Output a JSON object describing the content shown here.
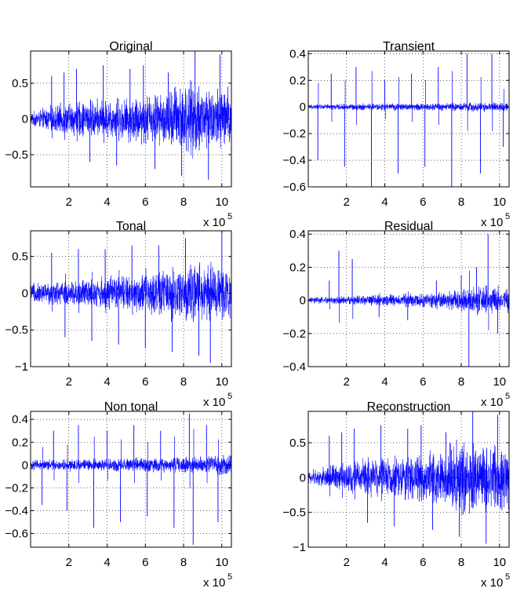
{
  "chart_data": [
    {
      "type": "line",
      "title": "Original",
      "color": "#0000ff",
      "xlim": [
        0,
        1050000
      ],
      "ylim": [
        -0.95,
        0.95
      ],
      "xticks": [
        200000,
        400000,
        600000,
        800000,
        1000000
      ],
      "xtick_labels": [
        "2",
        "4",
        "6",
        "8",
        "10"
      ],
      "yticks": [
        -0.5,
        0,
        0.5
      ],
      "ytick_labels": [
        "−0.5",
        "0",
        "0.5"
      ],
      "x_multiplier": "x 10",
      "x_multiplier_exp": "5",
      "grid": true,
      "envelope": {
        "x": [
          0,
          100000,
          200000,
          300000,
          400000,
          500000,
          600000,
          700000,
          750000,
          800000,
          900000,
          1000000,
          1050000
        ],
        "y": [
          0.1,
          0.2,
          0.25,
          0.3,
          0.3,
          0.35,
          0.4,
          0.4,
          0.55,
          0.6,
          0.55,
          0.5,
          0.5
        ]
      },
      "spikes": [
        {
          "x": 110000,
          "y": 0.6
        },
        {
          "x": 175000,
          "y": 0.65
        },
        {
          "x": 240000,
          "y": 0.7
        },
        {
          "x": 310000,
          "y": -0.6
        },
        {
          "x": 380000,
          "y": 0.75
        },
        {
          "x": 450000,
          "y": -0.65
        },
        {
          "x": 520000,
          "y": 0.7
        },
        {
          "x": 590000,
          "y": 0.75
        },
        {
          "x": 650000,
          "y": -0.7
        },
        {
          "x": 720000,
          "y": 0.65
        },
        {
          "x": 790000,
          "y": -0.8
        },
        {
          "x": 860000,
          "y": 0.95
        },
        {
          "x": 930000,
          "y": -0.85
        },
        {
          "x": 990000,
          "y": 0.9
        }
      ]
    },
    {
      "type": "line",
      "title": "Transient",
      "color": "#0000ff",
      "xlim": [
        0,
        1050000
      ],
      "ylim": [
        -0.6,
        0.42
      ],
      "xticks": [
        200000,
        400000,
        600000,
        800000,
        1000000
      ],
      "xtick_labels": [
        "2",
        "4",
        "6",
        "8",
        "10"
      ],
      "yticks": [
        -0.6,
        -0.4,
        -0.2,
        0,
        0.2,
        0.4
      ],
      "ytick_labels": [
        "−0.6",
        "−0.4",
        "−0.2",
        "0",
        "0.2",
        "0.4"
      ],
      "x_multiplier": "x 10",
      "x_multiplier_exp": "5",
      "grid": true,
      "envelope": {
        "x": [
          0,
          300000,
          600000,
          900000,
          1050000
        ],
        "y": [
          0.02,
          0.03,
          0.03,
          0.04,
          0.04
        ]
      },
      "spikes": [
        {
          "x": 50000,
          "y": -0.4
        },
        {
          "x": 120000,
          "y": 0.25
        },
        {
          "x": 190000,
          "y": -0.45
        },
        {
          "x": 250000,
          "y": 0.3
        },
        {
          "x": 330000,
          "y": -0.6
        },
        {
          "x": 400000,
          "y": 0.2
        },
        {
          "x": 470000,
          "y": -0.5
        },
        {
          "x": 540000,
          "y": 0.25
        },
        {
          "x": 610000,
          "y": -0.45
        },
        {
          "x": 680000,
          "y": 0.3
        },
        {
          "x": 750000,
          "y": -0.6
        },
        {
          "x": 830000,
          "y": 0.4
        },
        {
          "x": 900000,
          "y": -0.5
        },
        {
          "x": 960000,
          "y": 0.4
        },
        {
          "x": 1020000,
          "y": -0.3
        }
      ]
    },
    {
      "type": "line",
      "title": "Tonal",
      "color": "#0000ff",
      "xlim": [
        0,
        1050000
      ],
      "ylim": [
        -1.0,
        0.85
      ],
      "xticks": [
        200000,
        400000,
        600000,
        800000,
        1000000
      ],
      "xtick_labels": [
        "2",
        "4",
        "6",
        "8",
        "10"
      ],
      "yticks": [
        -1,
        -0.5,
        0,
        0.5
      ],
      "ytick_labels": [
        "−1",
        "−0.5",
        "0",
        "0.5"
      ],
      "x_multiplier": "x 10",
      "x_multiplier_exp": "5",
      "grid": true,
      "envelope": {
        "x": [
          0,
          200000,
          400000,
          600000,
          750000,
          850000,
          1000000,
          1050000
        ],
        "y": [
          0.15,
          0.2,
          0.25,
          0.3,
          0.4,
          0.45,
          0.4,
          0.4
        ]
      },
      "spikes": [
        {
          "x": 110000,
          "y": 0.55
        },
        {
          "x": 180000,
          "y": -0.6
        },
        {
          "x": 250000,
          "y": 0.6
        },
        {
          "x": 320000,
          "y": -0.65
        },
        {
          "x": 390000,
          "y": 0.6
        },
        {
          "x": 460000,
          "y": -0.7
        },
        {
          "x": 530000,
          "y": 0.65
        },
        {
          "x": 600000,
          "y": -0.75
        },
        {
          "x": 670000,
          "y": 0.65
        },
        {
          "x": 740000,
          "y": -0.8
        },
        {
          "x": 810000,
          "y": 0.75
        },
        {
          "x": 880000,
          "y": -0.85
        },
        {
          "x": 940000,
          "y": -0.95
        },
        {
          "x": 1000000,
          "y": 0.8
        }
      ]
    },
    {
      "type": "line",
      "title": "Residual",
      "color": "#0000ff",
      "xlim": [
        0,
        1050000
      ],
      "ylim": [
        -0.4,
        0.42
      ],
      "xticks": [
        200000,
        400000,
        600000,
        800000,
        1000000
      ],
      "xtick_labels": [
        "2",
        "4",
        "6",
        "8",
        "10"
      ],
      "yticks": [
        -0.4,
        -0.2,
        0,
        0.2,
        0.4
      ],
      "ytick_labels": [
        "−0.4",
        "−0.2",
        "0",
        "0.2",
        "0.4"
      ],
      "x_multiplier": "x 10",
      "x_multiplier_exp": "5",
      "grid": true,
      "envelope": {
        "x": [
          0,
          200000,
          400000,
          600000,
          800000,
          900000,
          1000000,
          1050000
        ],
        "y": [
          0.02,
          0.03,
          0.04,
          0.05,
          0.07,
          0.1,
          0.08,
          0.08
        ]
      },
      "spikes": [
        {
          "x": 110000,
          "y": 0.12
        },
        {
          "x": 160000,
          "y": 0.3
        },
        {
          "x": 230000,
          "y": 0.25
        },
        {
          "x": 370000,
          "y": -0.1
        },
        {
          "x": 520000,
          "y": -0.12
        },
        {
          "x": 670000,
          "y": 0.12
        },
        {
          "x": 800000,
          "y": 0.15
        },
        {
          "x": 840000,
          "y": -0.4
        },
        {
          "x": 880000,
          "y": 0.2
        },
        {
          "x": 940000,
          "y": 0.4
        },
        {
          "x": 990000,
          "y": -0.2
        }
      ]
    },
    {
      "type": "line",
      "title": "Non tonal",
      "color": "#0000ff",
      "xlim": [
        0,
        1050000
      ],
      "ylim": [
        -0.72,
        0.47
      ],
      "xticks": [
        200000,
        400000,
        600000,
        800000,
        1000000
      ],
      "xtick_labels": [
        "2",
        "4",
        "6",
        "8",
        "10"
      ],
      "yticks": [
        -0.6,
        -0.4,
        -0.2,
        0,
        0.2,
        0.4
      ],
      "ytick_labels": [
        "−0.6",
        "−0.4",
        "−0.2",
        "0",
        "0.2",
        "0.4"
      ],
      "x_multiplier": "x 10",
      "x_multiplier_exp": "5",
      "grid": true,
      "envelope": {
        "x": [
          0,
          300000,
          600000,
          900000,
          1050000
        ],
        "y": [
          0.05,
          0.06,
          0.07,
          0.08,
          0.12
        ]
      },
      "spikes": [
        {
          "x": 60000,
          "y": -0.35
        },
        {
          "x": 120000,
          "y": 0.3
        },
        {
          "x": 190000,
          "y": -0.4
        },
        {
          "x": 250000,
          "y": 0.35
        },
        {
          "x": 330000,
          "y": -0.55
        },
        {
          "x": 400000,
          "y": 0.3
        },
        {
          "x": 470000,
          "y": -0.5
        },
        {
          "x": 540000,
          "y": 0.35
        },
        {
          "x": 610000,
          "y": -0.45
        },
        {
          "x": 680000,
          "y": 0.3
        },
        {
          "x": 750000,
          "y": -0.55
        },
        {
          "x": 830000,
          "y": 0.45
        },
        {
          "x": 850000,
          "y": -0.7
        },
        {
          "x": 920000,
          "y": 0.35
        },
        {
          "x": 980000,
          "y": -0.5
        }
      ]
    },
    {
      "type": "line",
      "title": "Reconstruction",
      "color": "#0000ff",
      "xlim": [
        0,
        1050000
      ],
      "ylim": [
        -1.0,
        0.95
      ],
      "xticks": [
        200000,
        400000,
        600000,
        800000,
        1000000
      ],
      "xtick_labels": [
        "2",
        "4",
        "6",
        "8",
        "10"
      ],
      "yticks": [
        -1,
        -0.5,
        0,
        0.5
      ],
      "ytick_labels": [
        "−1",
        "−0.5",
        "0",
        "0.5"
      ],
      "x_multiplier": "x 10",
      "x_multiplier_exp": "5",
      "grid": true,
      "envelope": {
        "x": [
          0,
          100000,
          200000,
          300000,
          400000,
          500000,
          600000,
          700000,
          750000,
          800000,
          900000,
          1000000,
          1050000
        ],
        "y": [
          0.1,
          0.2,
          0.25,
          0.3,
          0.3,
          0.35,
          0.4,
          0.4,
          0.55,
          0.6,
          0.55,
          0.5,
          0.5
        ]
      },
      "spikes": [
        {
          "x": 110000,
          "y": 0.6
        },
        {
          "x": 175000,
          "y": 0.65
        },
        {
          "x": 240000,
          "y": 0.7
        },
        {
          "x": 310000,
          "y": -0.65
        },
        {
          "x": 380000,
          "y": 0.75
        },
        {
          "x": 450000,
          "y": -0.7
        },
        {
          "x": 520000,
          "y": 0.7
        },
        {
          "x": 590000,
          "y": 0.75
        },
        {
          "x": 650000,
          "y": -0.75
        },
        {
          "x": 720000,
          "y": 0.65
        },
        {
          "x": 790000,
          "y": -0.85
        },
        {
          "x": 860000,
          "y": 0.95
        },
        {
          "x": 930000,
          "y": -0.95
        },
        {
          "x": 990000,
          "y": 0.9
        }
      ]
    }
  ]
}
